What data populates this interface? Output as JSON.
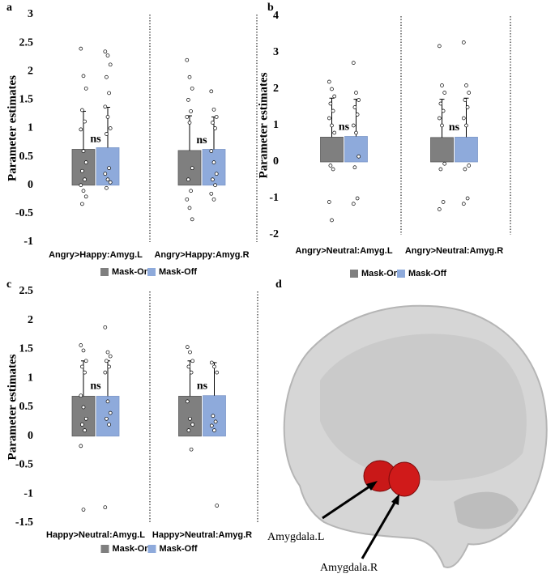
{
  "chart_data": [
    {
      "type": "bar",
      "panel_label": "a",
      "ylabel": "Parameter estimates",
      "categories": [
        "Angry>Happy:Amyg.L",
        "Angry>Happy:Amyg.R"
      ],
      "series": [
        {
          "name": "Mask-On",
          "color": "#7f7f7f",
          "values": [
            0.63,
            0.61
          ],
          "errors": [
            0.67,
            0.61
          ],
          "points": [
            [
              2.4,
              1.92,
              1.7,
              1.32,
              1.12,
              0.98,
              0.6,
              0.4,
              0.25,
              0.1,
              0,
              -0.1,
              -0.2,
              -0.33
            ],
            [
              2.2,
              1.9,
              1.7,
              1.5,
              1.3,
              1.2,
              1.1,
              0.3,
              0.1,
              -0.1,
              -0.25,
              -0.4,
              -0.6
            ]
          ]
        },
        {
          "name": "Mask-Off",
          "color": "#8eaadb",
          "values": [
            0.66,
            0.63
          ],
          "errors": [
            0.71,
            0.57
          ],
          "points": [
            [
              2.35,
              2.28,
              2.12,
              1.9,
              1.62,
              1.38,
              1.2,
              1.0,
              0.9,
              0.3,
              0.2,
              0.1,
              0.05,
              -0.05
            ],
            [
              1.65,
              1.33,
              1.2,
              1.1,
              1.0,
              0.6,
              0.4,
              0.2,
              0.1,
              0,
              -0.15,
              -0.25
            ]
          ]
        }
      ],
      "annotations": [
        "ns",
        "ns"
      ],
      "ylim": [
        -1,
        3
      ],
      "yticks": [
        -1,
        -0.5,
        0,
        0.5,
        1,
        1.5,
        2,
        2.5,
        3
      ]
    },
    {
      "type": "bar",
      "panel_label": "b",
      "ylabel": "Parameter estimates",
      "categories": [
        "Angry>Neutral:Amyg.L",
        "Angry>Neutral:Amyg.R"
      ],
      "series": [
        {
          "name": "Mask-On",
          "color": "#7f7f7f",
          "values": [
            0.68,
            0.67
          ],
          "errors": [
            1.07,
            1.05
          ],
          "points": [
            [
              2.2,
              2.0,
              1.8,
              1.6,
              1.4,
              1.2,
              1.0,
              0.8,
              -0.1,
              -0.2,
              -1.1,
              -1.6
            ],
            [
              3.18,
              2.1,
              1.9,
              1.6,
              1.4,
              1.2,
              1.0,
              -0.05,
              -0.2,
              -1.1,
              -1.3
            ]
          ]
        },
        {
          "name": "Mask-Off",
          "color": "#8eaadb",
          "values": [
            0.7,
            0.68
          ],
          "errors": [
            1.02,
            1.07
          ],
          "points": [
            [
              2.72,
              1.9,
              1.7,
              1.5,
              1.3,
              1.0,
              0.8,
              0.15,
              -0.15,
              -1.0,
              -1.15
            ],
            [
              3.28,
              2.1,
              1.9,
              1.7,
              1.5,
              1.2,
              1.0,
              -0.1,
              -0.2,
              -1.0,
              -1.15
            ]
          ]
        }
      ],
      "annotations": [
        "ns",
        "ns"
      ],
      "ylim": [
        -2,
        4
      ],
      "yticks": [
        -2,
        -1,
        0,
        1,
        2,
        3,
        4
      ]
    },
    {
      "type": "bar",
      "panel_label": "c",
      "ylabel": "Parameter estimates",
      "categories": [
        "Happy>Neutral:Amyg.L",
        "Happy>Neutral:Amyg.R"
      ],
      "series": [
        {
          "name": "Mask-On",
          "color": "#7f7f7f",
          "values": [
            0.69,
            0.69
          ],
          "errors": [
            0.61,
            0.61
          ],
          "points": [
            [
              1.57,
              1.48,
              1.3,
              1.2,
              1.1,
              0.7,
              0.5,
              0.3,
              0.2,
              0.1,
              -0.17,
              -1.27
            ],
            [
              1.54,
              1.45,
              1.3,
              1.2,
              1.1,
              0.6,
              0.3,
              0.2,
              0.1,
              -0.23
            ]
          ]
        },
        {
          "name": "Mask-Off",
          "color": "#8eaadb",
          "values": [
            0.69,
            0.7
          ],
          "errors": [
            0.61,
            0.57
          ],
          "points": [
            [
              1.88,
              1.45,
              1.38,
              1.3,
              1.2,
              1.1,
              0.6,
              0.4,
              0.3,
              0.2,
              -1.23
            ],
            [
              1.27,
              1.2,
              1.1,
              0.35,
              0.25,
              0.18,
              0.1,
              -1.2
            ]
          ]
        }
      ],
      "annotations": [
        "ns",
        "ns"
      ],
      "ylim": [
        -1.5,
        2.5
      ],
      "yticks": [
        -1.5,
        -1,
        -0.5,
        0,
        0.5,
        1,
        1.5,
        2,
        2.5
      ]
    }
  ],
  "brain_panel": {
    "label": "d",
    "regions": [
      "Amygdala.L",
      "Amygdala.R"
    ]
  }
}
